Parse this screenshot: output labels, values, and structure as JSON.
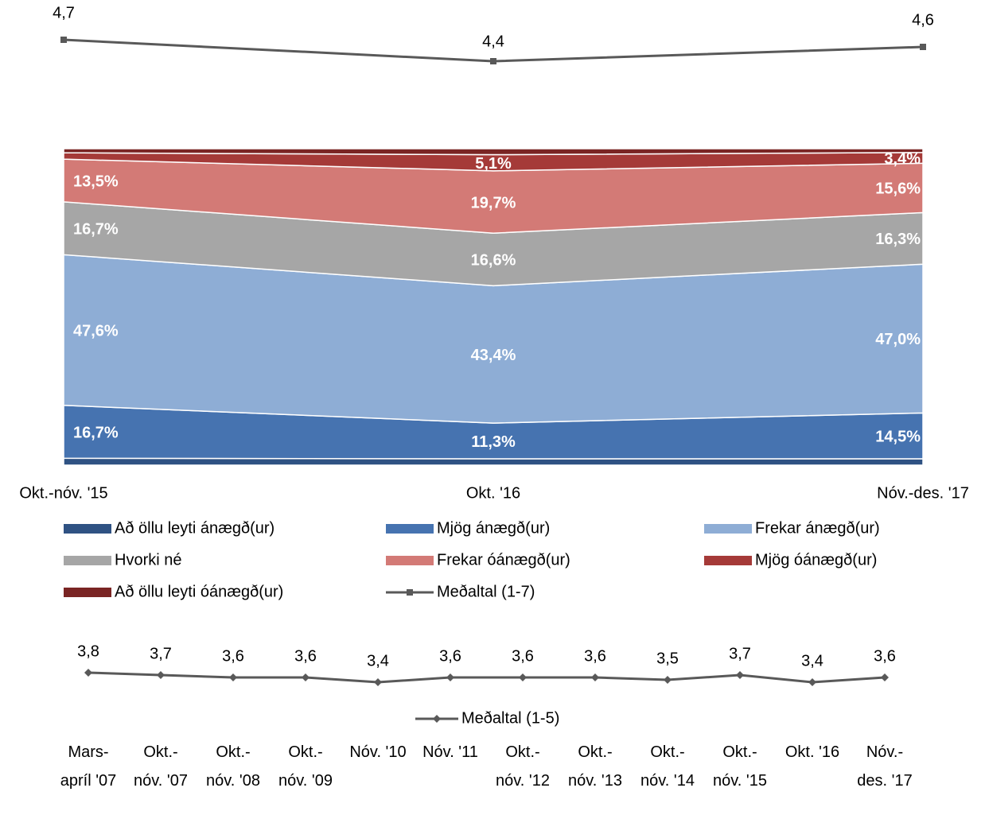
{
  "chart_data": [
    {
      "type": "stacked_area",
      "categories": [
        "Okt.-nóv. '15",
        "Okt. '16",
        "Nóv.-des. '17"
      ],
      "ylim": [
        0,
        100
      ],
      "y2lim": [
        4,
        5
      ],
      "series": [
        {
          "name": "Að öllu leyti ánægð(ur)",
          "color": "#2f5283",
          "values": [
            2.2,
            2.0,
            2.0
          ],
          "value_labels": [
            null,
            null,
            null
          ]
        },
        {
          "name": "Mjög ánægð(ur)",
          "color": "#4673b0",
          "values": [
            16.7,
            11.3,
            14.5
          ],
          "value_labels": [
            "16,7%",
            "11,3%",
            "14,5%"
          ]
        },
        {
          "name": "Frekar ánægð(ur)",
          "color": "#8eadd5",
          "values": [
            47.6,
            43.4,
            47.0
          ],
          "value_labels": [
            "47,6%",
            "43,4%",
            "47,0%"
          ]
        },
        {
          "name": "Hvorki né",
          "color": "#a6a6a6",
          "values": [
            16.7,
            16.6,
            16.3
          ],
          "value_labels": [
            "16,7%",
            "16,6%",
            "16,3%"
          ]
        },
        {
          "name": "Frekar óánægð(ur)",
          "color": "#d37a76",
          "values": [
            13.5,
            19.7,
            15.6
          ],
          "value_labels": [
            "13,5%",
            "19,7%",
            "15,6%"
          ]
        },
        {
          "name": "Mjög óánægð(ur)",
          "color": "#a53a38",
          "values": [
            2.0,
            5.1,
            3.4
          ],
          "value_labels": [
            null,
            "5,1%",
            "3,4%"
          ]
        },
        {
          "name": "Að öllu leyti óánægð(ur)",
          "color": "#7a2524",
          "values": [
            1.3,
            1.9,
            1.2
          ],
          "value_labels": [
            null,
            null,
            null
          ]
        },
        {
          "name": "Meðaltal (1-7)",
          "type": "line",
          "axis": "y2",
          "color": "#595959",
          "values": [
            4.7,
            4.4,
            4.6
          ],
          "value_labels": [
            "4,7",
            "4,4",
            "4,6"
          ]
        }
      ]
    },
    {
      "type": "line",
      "categories": [
        "Mars- apríl '07",
        "Okt.- nóv. '07",
        "Okt.- nóv. '08",
        "Okt.- nóv. '09",
        "Nóv. '10",
        "Nóv. '11",
        "Okt.- nóv. '12",
        "Okt.- nóv. '13",
        "Okt.- nóv. '14",
        "Okt.- nóv. '15",
        "Okt. '16",
        "Nóv.- des. '17"
      ],
      "ylim": [
        2,
        6
      ],
      "series": [
        {
          "name": "Meðaltal (1-5)",
          "color": "#595959",
          "values": [
            3.8,
            3.7,
            3.6,
            3.6,
            3.4,
            3.6,
            3.6,
            3.6,
            3.5,
            3.7,
            3.4,
            3.6
          ],
          "value_labels": [
            "3,8",
            "3,7",
            "3,6",
            "3,6",
            "3,4",
            "3,6",
            "3,6",
            "3,6",
            "3,5",
            "3,7",
            "3,4",
            "3,6"
          ]
        }
      ]
    }
  ]
}
